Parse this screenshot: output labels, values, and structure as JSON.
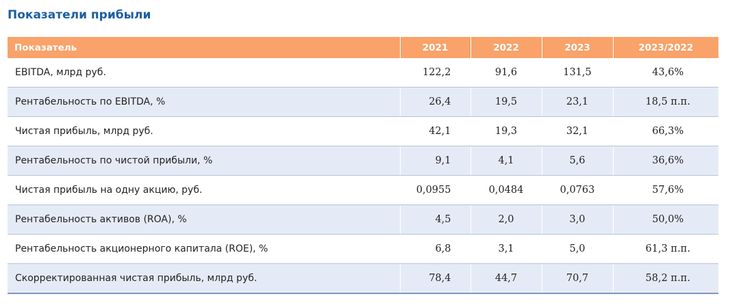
{
  "page": {
    "title": "Показатели прибыли"
  },
  "table": {
    "header": {
      "name": "Показатель",
      "y2021": "2021",
      "y2022": "2022",
      "y2023": "2023",
      "change": "2023/2022"
    },
    "rows": [
      {
        "name": "EBITDA, млрд руб.",
        "y2021": "122,2",
        "y2022": "91,6",
        "y2023": "131,5",
        "change": "43,6%"
      },
      {
        "name": "Рентабельность по EBITDA, %",
        "y2021": "26,4",
        "y2022": "19,5",
        "y2023": "23,1",
        "change": "18,5 п.п."
      },
      {
        "name": "Чистая прибыль, млрд руб.",
        "y2021": "42,1",
        "y2022": "19,3",
        "y2023": "32,1",
        "change": "66,3%"
      },
      {
        "name": "Рентабельность по чистой прибыли, %",
        "y2021": "9,1",
        "y2022": "4,1",
        "y2023": "5,6",
        "change": "36,6%"
      },
      {
        "name": "Чистая прибыль на одну акцию, руб.",
        "y2021": "0,0955",
        "y2022": "0,0484",
        "y2023": "0,0763",
        "change": "57,6%"
      },
      {
        "name": "Рентабельность активов (ROA), %",
        "y2021": "4,5",
        "y2022": "2,0",
        "y2023": "3,0",
        "change": "50,0%"
      },
      {
        "name": "Рентабельность акционерного капитала (ROE), %",
        "y2021": "6,8",
        "y2022": "3,1",
        "y2023": "5,0",
        "change": "61,3 п.п."
      },
      {
        "name": "Скорректированная чистая прибыль, млрд руб.",
        "y2021": "78,4",
        "y2022": "44,7",
        "y2023": "70,7",
        "change": "58,2 п.п."
      }
    ]
  },
  "colors": {
    "title": "#1c5f9e",
    "header_bg": "#f9a26a",
    "header_text": "#ffffff",
    "row_alt_bg": "#e5ebf6",
    "row_border": "#b7c3d8",
    "table_bottom_border": "#7f95c0"
  }
}
